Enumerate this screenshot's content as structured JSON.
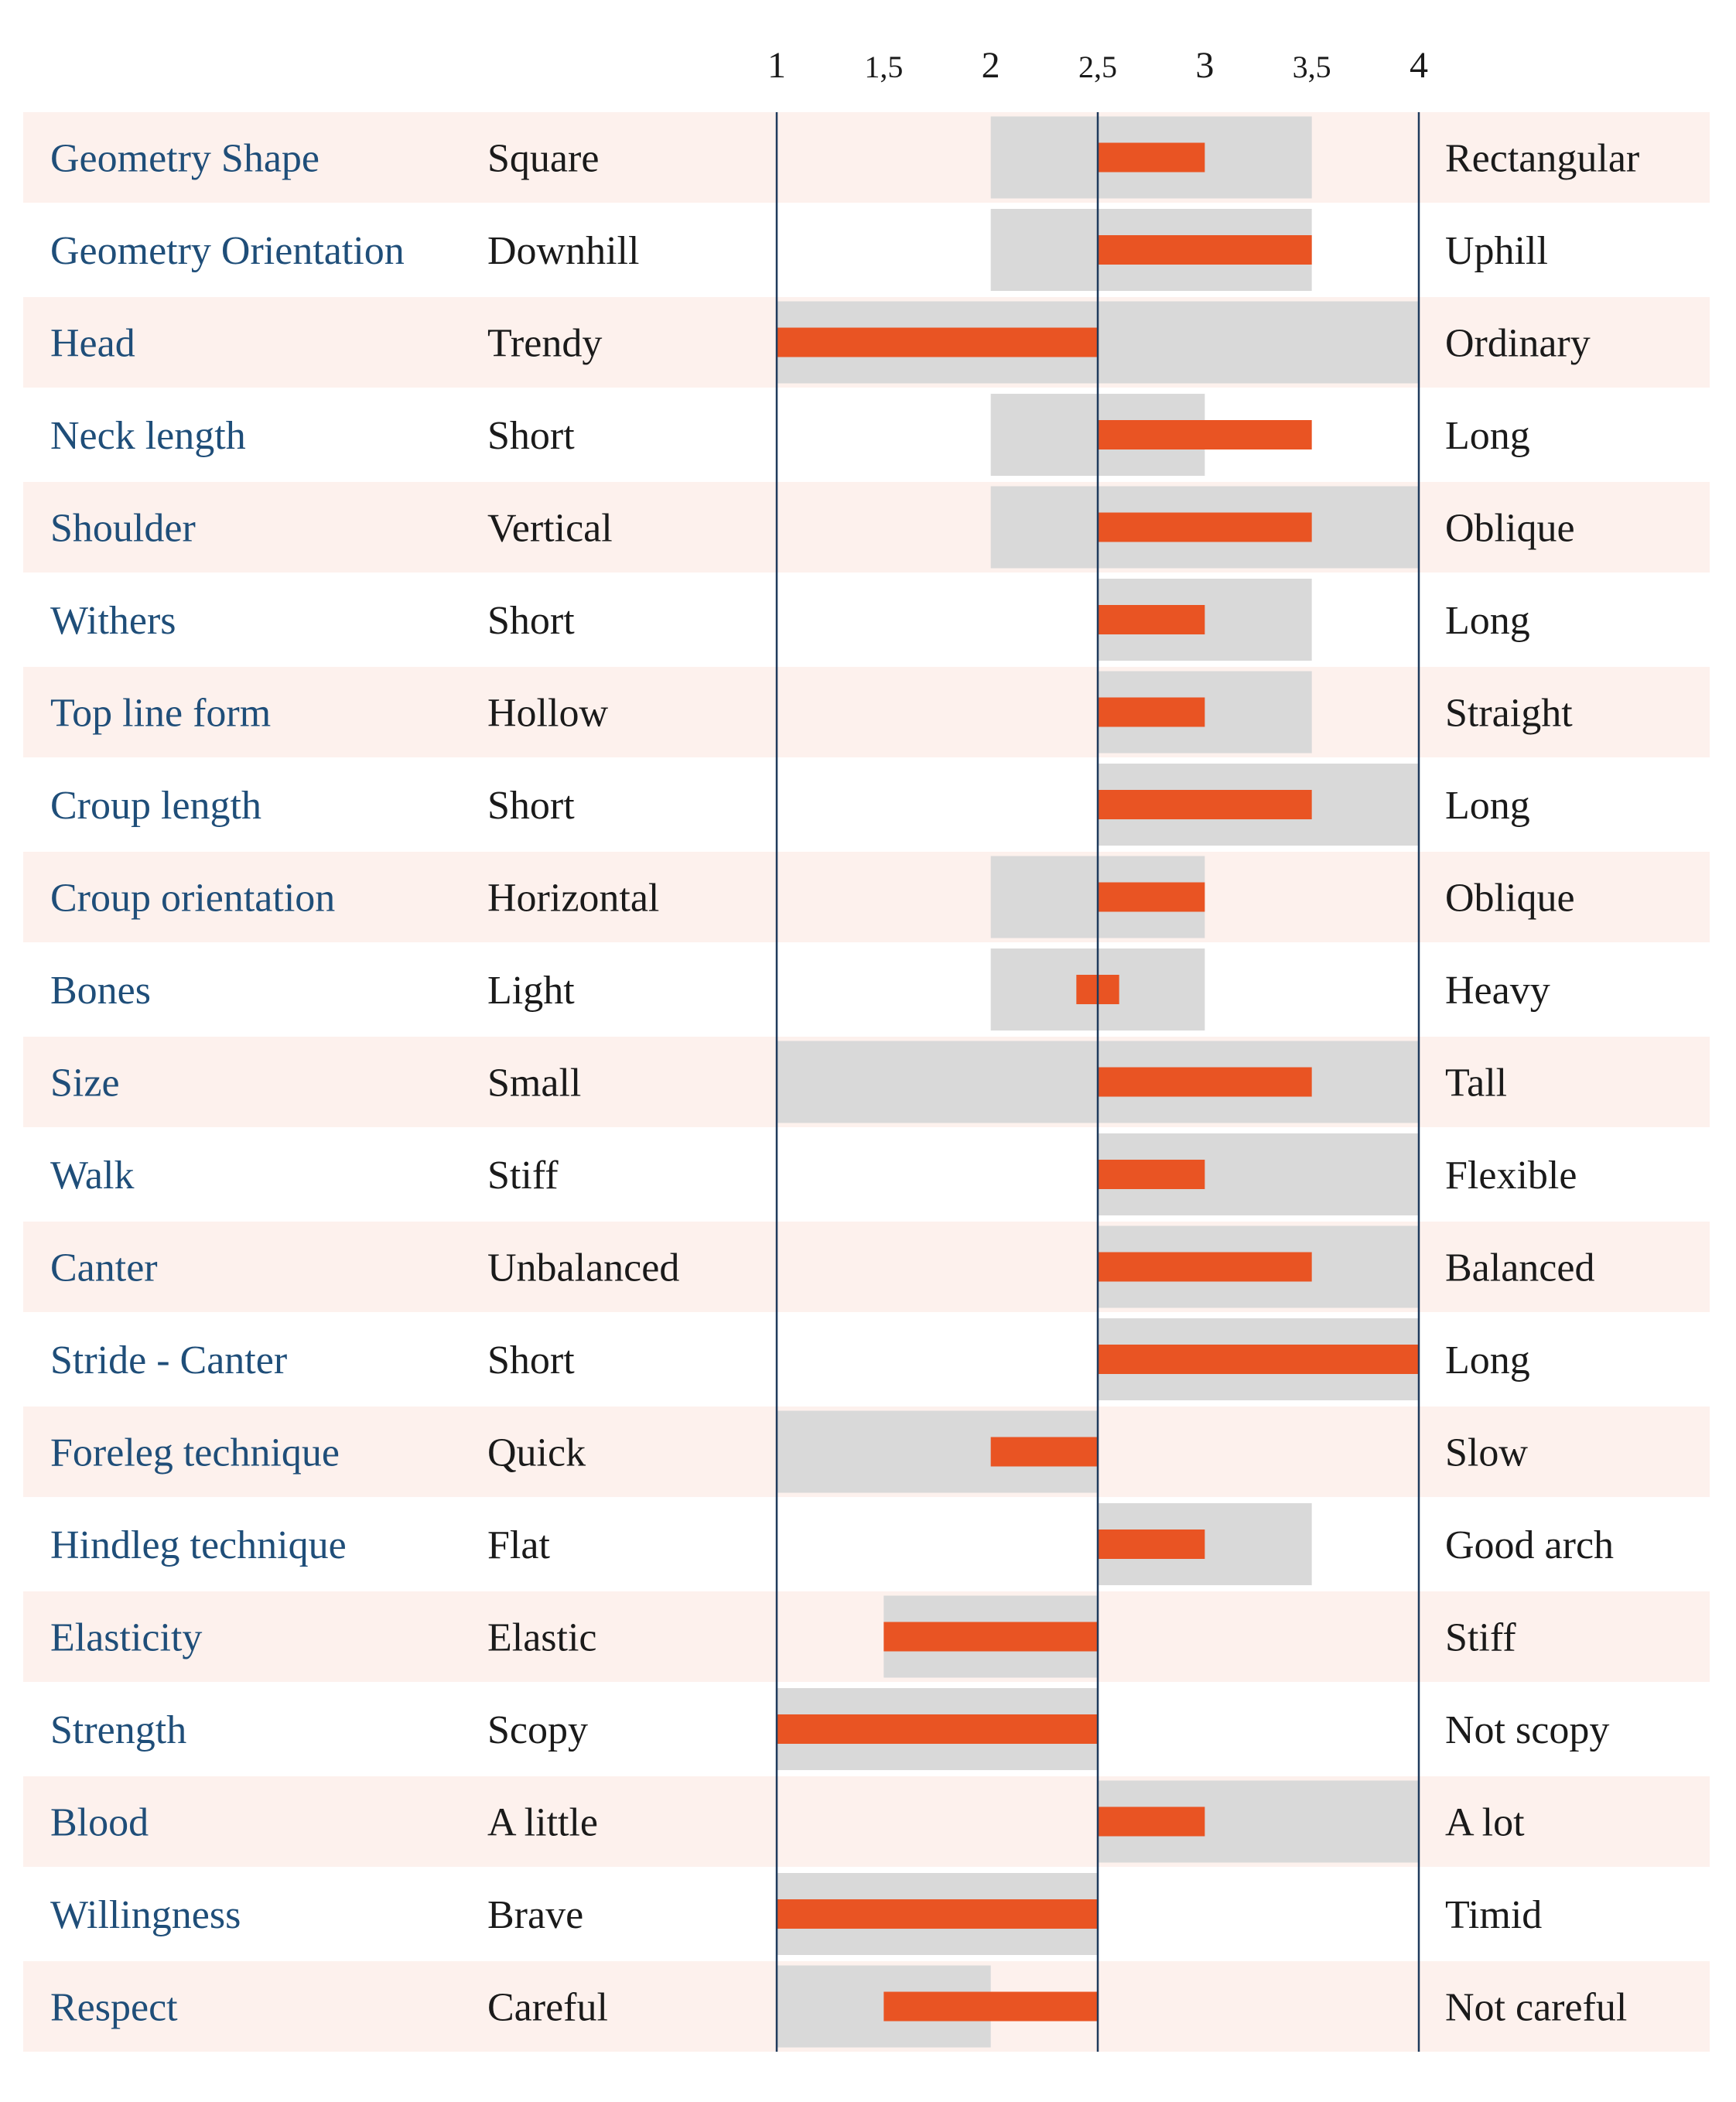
{
  "chart_data": {
    "type": "bar",
    "axis_ticks": [
      "1",
      "1,5",
      "2",
      "2,5",
      "3",
      "3,5",
      "4"
    ],
    "tick_values": [
      1,
      1.5,
      2,
      2.5,
      3,
      3.5,
      4
    ],
    "xlim": [
      1,
      4
    ],
    "baseline": 2.5,
    "colors": {
      "bar": "#e95423",
      "range": "#d9d9d9",
      "row_band": "#fdf1ed",
      "trait_text": "#1f4e79",
      "axis_line": "#1f3a5c"
    },
    "rows": [
      {
        "trait": "Geometry Shape",
        "low": "Square",
        "high": "Rectangular",
        "value": 3.0,
        "range": [
          2.0,
          3.5
        ]
      },
      {
        "trait": "Geometry Orientation",
        "low": "Downhill",
        "high": "Uphill",
        "value": 3.5,
        "range": [
          2.0,
          3.5
        ]
      },
      {
        "trait": "Head",
        "low": "Trendy",
        "high": "Ordinary",
        "value": 1.0,
        "range": [
          1.0,
          4.0
        ]
      },
      {
        "trait": "Neck length",
        "low": "Short",
        "high": "Long",
        "value": 3.5,
        "range": [
          2.0,
          3.0
        ]
      },
      {
        "trait": "Shoulder",
        "low": "Vertical",
        "high": "Oblique",
        "value": 3.5,
        "range": [
          2.0,
          4.0
        ]
      },
      {
        "trait": "Withers",
        "low": "Short",
        "high": "Long",
        "value": 3.0,
        "range": [
          2.5,
          3.5
        ]
      },
      {
        "trait": "Top line form",
        "low": "Hollow",
        "high": "Straight",
        "value": 3.0,
        "range": [
          2.5,
          3.5
        ]
      },
      {
        "trait": "Croup length",
        "low": "Short",
        "high": "Long",
        "value": 3.5,
        "range": [
          2.5,
          4.0
        ]
      },
      {
        "trait": "Croup orientation",
        "low": "Horizontal",
        "high": "Oblique",
        "value": 3.0,
        "range": [
          2.0,
          3.0
        ]
      },
      {
        "trait": "Bones",
        "low": "Light",
        "high": "Heavy",
        "value": [
          2.4,
          2.6
        ],
        "range": [
          2.0,
          3.0
        ]
      },
      {
        "trait": "Size",
        "low": "Small",
        "high": "Tall",
        "value": 3.5,
        "range": [
          1.0,
          4.0
        ]
      },
      {
        "trait": "Walk",
        "low": "Stiff",
        "high": "Flexible",
        "value": 3.0,
        "range": [
          2.5,
          4.0
        ]
      },
      {
        "trait": "Canter",
        "low": "Unbalanced",
        "high": "Balanced",
        "value": 3.5,
        "range": [
          2.5,
          4.0
        ]
      },
      {
        "trait": "Stride - Canter",
        "low": "Short",
        "high": "Long",
        "value": 4.0,
        "range": [
          2.5,
          4.0
        ]
      },
      {
        "trait": "Foreleg technique",
        "low": "Quick",
        "high": "Slow",
        "value": 2.0,
        "range": [
          1.0,
          2.5
        ]
      },
      {
        "trait": "Hindleg technique",
        "low": "Flat",
        "high": "Good arch",
        "value": 3.0,
        "range": [
          2.5,
          3.5
        ]
      },
      {
        "trait": "Elasticity",
        "low": "Elastic",
        "high": "Stiff",
        "value": 1.5,
        "range": [
          1.5,
          2.5
        ]
      },
      {
        "trait": "Strength",
        "low": "Scopy",
        "high": "Not scopy",
        "value": 1.0,
        "range": [
          1.0,
          2.5
        ]
      },
      {
        "trait": "Blood",
        "low": "A little",
        "high": "A lot",
        "value": 3.0,
        "range": [
          2.5,
          4.0
        ]
      },
      {
        "trait": "Willingness",
        "low": "Brave",
        "high": "Timid",
        "value": 1.0,
        "range": [
          1.0,
          2.5
        ]
      },
      {
        "trait": "Respect",
        "low": "Careful",
        "high": "Not careful",
        "value": 1.5,
        "range": [
          1.0,
          2.0
        ]
      }
    ]
  }
}
